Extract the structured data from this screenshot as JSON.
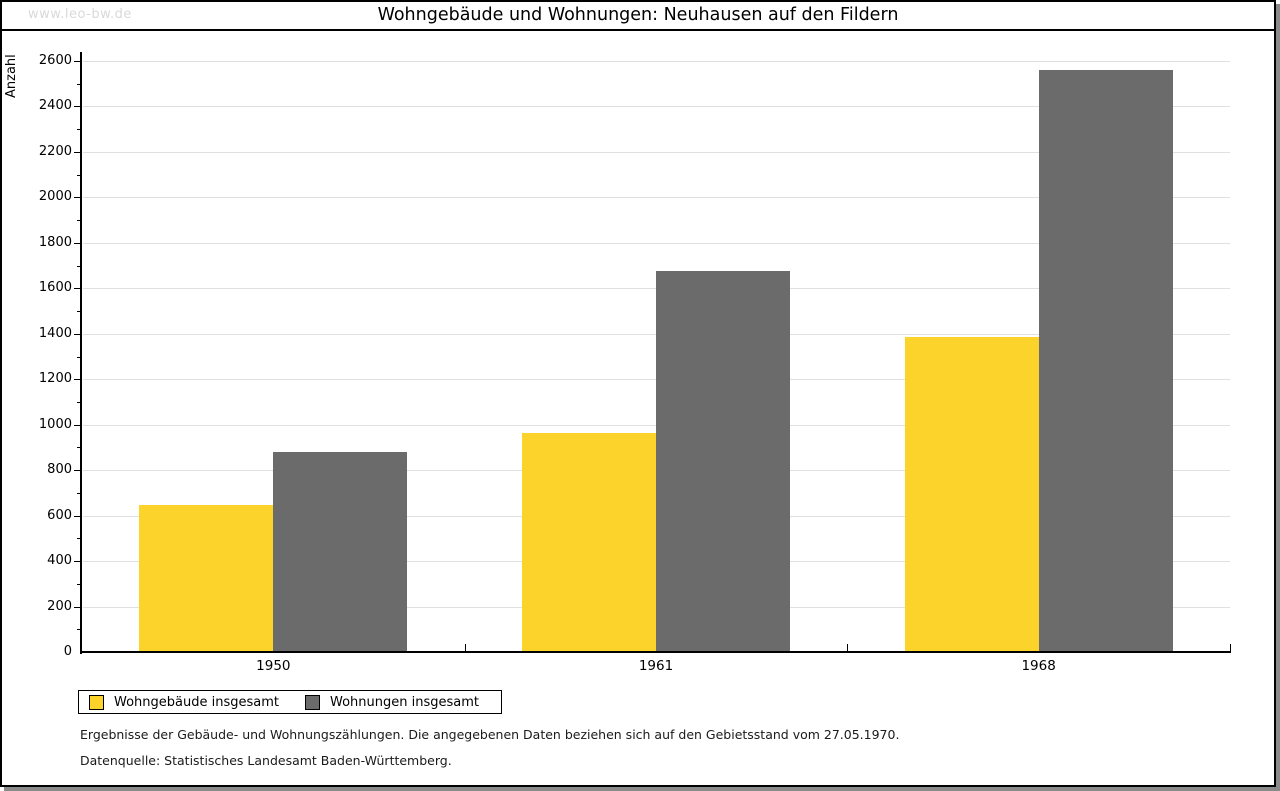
{
  "watermark": "www.leo-bw.de",
  "chart_data": {
    "type": "bar",
    "title": "Wohngebäude und Wohnungen: Neuhausen auf den Fildern",
    "ylabel": "Anzahl",
    "xlabel": "",
    "categories": [
      "1950",
      "1961",
      "1968"
    ],
    "series": [
      {
        "name": "Wohngebäude insgesamt",
        "color": "#fbd32b",
        "values": [
          645,
          965,
          1385
        ]
      },
      {
        "name": "Wohnungen insgesamt",
        "color": "#6b6b6b",
        "values": [
          880,
          1675,
          2560
        ]
      }
    ],
    "ylim": [
      0,
      2600
    ],
    "y_tick_step": 200,
    "y_minor_tick_step": 100,
    "y_tick_labels": [
      "0",
      "200",
      "400",
      "600",
      "800",
      "1000",
      "1200",
      "1400",
      "1600",
      "1800",
      "2000",
      "2200",
      "2400",
      "2600"
    ],
    "grid": "horizontal-major",
    "legend_position": "bottom-left"
  },
  "footer": {
    "line1": "Ergebnisse der Gebäude- und Wohnungszählungen. Die angegebenen Daten beziehen sich auf den Gebietsstand vom 27.05.1970.",
    "line2": "Datenquelle: Statistisches Landesamt Baden-Württemberg."
  }
}
